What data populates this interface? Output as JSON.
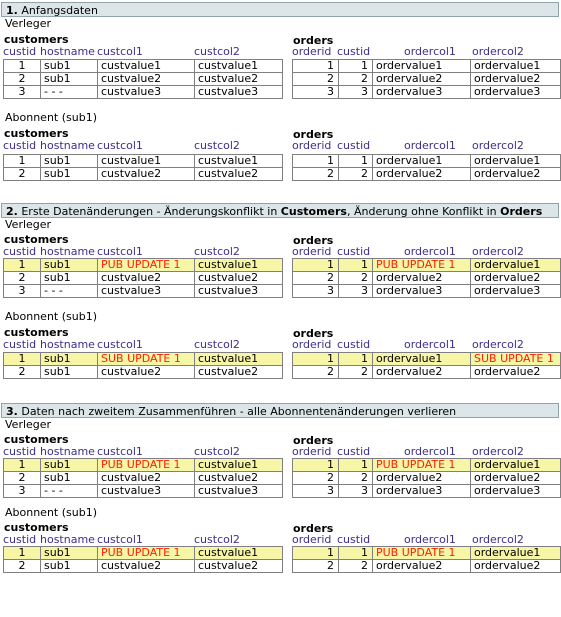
{
  "sections": [
    {
      "num": "1.",
      "title": "Anfangsdaten"
    },
    {
      "num": "2.",
      "pre": "Erste Datenänderungen - Änderungskonflikt in ",
      "bold1": "Customers",
      "mid": ", Änderung ohne Konflikt in ",
      "bold2": "Orders"
    },
    {
      "num": "3.",
      "title": "Daten nach zweitem Zusammenführen - alle Abonnentenänderungen verlieren"
    }
  ],
  "labels": {
    "publisher": "Verleger",
    "subscriber": "Abonnent (sub1)"
  },
  "tables": {
    "customers": "customers",
    "orders": "orders"
  },
  "columns": {
    "customers": [
      "custid",
      "hostname",
      "custcol1",
      "custcol2"
    ],
    "orders": [
      "orderid",
      "custid",
      "ordercol1",
      "ordercol2"
    ]
  },
  "blocks": {
    "s1_pub": {
      "customers": [
        [
          "1",
          "sub1",
          "custvalue1",
          "custvalue1"
        ],
        [
          "2",
          "sub1",
          "custvalue2",
          "custvalue2"
        ],
        [
          "3",
          "- - -",
          "custvalue3",
          "custvalue3"
        ]
      ],
      "orders": [
        [
          "1",
          "1",
          "ordervalue1",
          "ordervalue1"
        ],
        [
          "2",
          "2",
          "ordervalue2",
          "ordervalue2"
        ],
        [
          "3",
          "3",
          "ordervalue3",
          "ordervalue3"
        ]
      ]
    },
    "s1_sub": {
      "customers": [
        [
          "1",
          "sub1",
          "custvalue1",
          "custvalue1"
        ],
        [
          "2",
          "sub1",
          "custvalue2",
          "custvalue2"
        ]
      ],
      "orders": [
        [
          "1",
          "1",
          "ordervalue1",
          "ordervalue1"
        ],
        [
          "2",
          "2",
          "ordervalue2",
          "ordervalue2"
        ]
      ]
    },
    "s2_pub": {
      "customers": [
        [
          "1",
          "sub1",
          "PUB UPDATE 1",
          "custvalue1"
        ],
        [
          "2",
          "sub1",
          "custvalue2",
          "custvalue2"
        ],
        [
          "3",
          "- - -",
          "custvalue3",
          "custvalue3"
        ]
      ],
      "orders": [
        [
          "1",
          "1",
          "PUB UPDATE 1",
          "ordervalue1"
        ],
        [
          "2",
          "2",
          "ordervalue2",
          "ordervalue2"
        ],
        [
          "3",
          "3",
          "ordervalue3",
          "ordervalue3"
        ]
      ]
    },
    "s2_sub": {
      "customers": [
        [
          "1",
          "sub1",
          "SUB UPDATE 1",
          "custvalue1"
        ],
        [
          "2",
          "sub1",
          "custvalue2",
          "custvalue2"
        ]
      ],
      "orders": [
        [
          "1",
          "1",
          "ordervalue1",
          "SUB UPDATE 1"
        ],
        [
          "2",
          "2",
          "ordervalue2",
          "ordervalue2"
        ]
      ]
    },
    "s3_pub": {
      "customers": [
        [
          "1",
          "sub1",
          "PUB UPDATE 1",
          "custvalue1"
        ],
        [
          "2",
          "sub1",
          "custvalue2",
          "custvalue2"
        ],
        [
          "3",
          "- - -",
          "custvalue3",
          "custvalue3"
        ]
      ],
      "orders": [
        [
          "1",
          "1",
          "PUB UPDATE 1",
          "ordervalue1"
        ],
        [
          "2",
          "2",
          "ordervalue2",
          "ordervalue2"
        ],
        [
          "3",
          "3",
          "ordervalue3",
          "ordervalue3"
        ]
      ]
    },
    "s3_sub": {
      "customers": [
        [
          "1",
          "sub1",
          "PUB UPDATE 1",
          "custvalue1"
        ],
        [
          "2",
          "sub1",
          "custvalue2",
          "custvalue2"
        ]
      ],
      "orders": [
        [
          "1",
          "1",
          "PUB UPDATE 1",
          "ordervalue1"
        ],
        [
          "2",
          "2",
          "ordervalue2",
          "ordervalue2"
        ]
      ]
    }
  },
  "colors": {
    "highlight_row": "#f6f6a6",
    "update_text": "#ff2000",
    "column_header": "#3c2f8c",
    "section_bg": "#dce6e8"
  }
}
